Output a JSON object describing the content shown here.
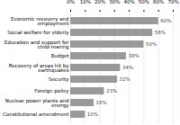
{
  "chart_data": {
    "type": "bar",
    "orientation": "horizontal",
    "categories": [
      "Constitutional amendment",
      "Nuclear power plants and energy",
      "Foreign policy",
      "Security",
      "Recovery of areas hit by earthquakes",
      "Budget",
      "Education and support for child-rearing",
      "Social welfare for elderly",
      "Economic recovery and employment"
    ],
    "values": [
      10,
      16,
      23,
      32,
      34,
      38,
      50,
      56,
      60
    ],
    "value_labels": [
      "10%",
      "16%",
      "23%",
      "32%",
      "34%",
      "38%",
      "50%",
      "56%",
      "60%"
    ],
    "data_labels": true,
    "color": "#999999",
    "xlim": [
      0,
      70
    ],
    "xticks": [
      {
        "value": 0,
        "label": "0%"
      },
      {
        "value": 10,
        "label": "10%"
      },
      {
        "value": 20,
        "label": "20%"
      },
      {
        "value": 30,
        "label": "30%"
      },
      {
        "value": 40,
        "label": "40%"
      },
      {
        "value": 50,
        "label": "50%"
      },
      {
        "value": 60,
        "label": "60%"
      },
      {
        "value": 70,
        "label": "70%"
      }
    ],
    "grid": true
  }
}
